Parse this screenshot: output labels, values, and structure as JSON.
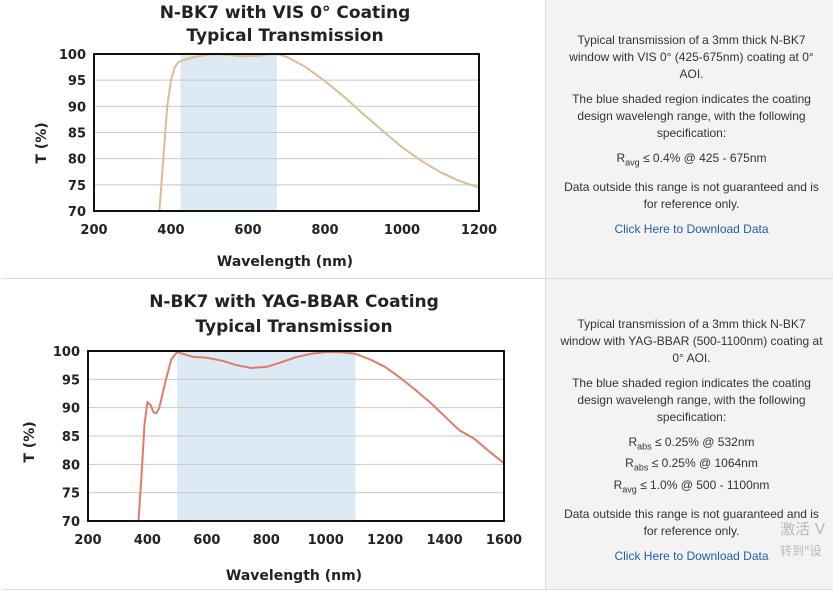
{
  "charts": [
    {
      "title_line1": "N-BK7 with VIS 0° Coating",
      "title_line2": "Typical Transmission",
      "xlabel": "Wavelength (nm)",
      "ylabel": "T (%)",
      "x_ticks": [
        "200",
        "400",
        "600",
        "800",
        "1000",
        "1200"
      ],
      "y_ticks": [
        "70",
        "75",
        "80",
        "85",
        "90",
        "95",
        "100"
      ],
      "description": "Typical transmission of a 3mm thick N-BK7 window with VIS 0° (425-675nm) coating at 0° AOI.",
      "shaded_note": "The blue shaded region indicates the coating design wavelengh range, with the following specification:",
      "specs": [
        {
          "symbol": "R",
          "sub": "avg",
          "text": "≤ 0.4% @ 425 - 675nm"
        }
      ],
      "disclaimer": "Data outside this range is not guaranteed and is for reference only.",
      "download_label": "Click Here to Download Data"
    },
    {
      "title_line1": "N-BK7 with YAG-BBAR Coating",
      "title_line2": "Typical Transmission",
      "xlabel": "Wavelength (nm)",
      "ylabel": "T (%)",
      "x_ticks": [
        "200",
        "400",
        "600",
        "800",
        "1000",
        "1200",
        "1400",
        "1600"
      ],
      "y_ticks": [
        "70",
        "75",
        "80",
        "85",
        "90",
        "95",
        "100"
      ],
      "description": "Typical transmission of a 3mm thick N-BK7 window with YAG-BBAR (500-1100nm) coating at 0° AOI.",
      "shaded_note": "The blue shaded region indicates the coating design wavelengh range, with the following specification:",
      "specs": [
        {
          "symbol": "R",
          "sub": "abs",
          "text": "≤ 0.25% @ 532nm"
        },
        {
          "symbol": "R",
          "sub": "abs",
          "text": "≤ 0.25% @ 1064nm"
        },
        {
          "symbol": "R",
          "sub": "avg",
          "text": "≤ 1.0% @ 500 - 1100nm"
        }
      ],
      "disclaimer": "Data outside this range is not guaranteed and is for reference only.",
      "download_label": "Click Here to Download Data"
    }
  ],
  "watermark": {
    "line1": "激活 V",
    "line2": "转到\"设"
  },
  "chart_data": [
    {
      "type": "line",
      "title": "N-BK7 with VIS 0° Coating Typical Transmission",
      "xlabel": "Wavelength (nm)",
      "ylabel": "T (%)",
      "xlim": [
        200,
        1200
      ],
      "ylim": [
        70,
        100
      ],
      "shaded_range": [
        425,
        675
      ],
      "shade_color": "#dde9f5",
      "grid": true,
      "series": [
        {
          "color": "#d9be93",
          "x": [
            370,
            380,
            390,
            400,
            410,
            420,
            440,
            460,
            480,
            500,
            520,
            550,
            580,
            600,
            630,
            650,
            675,
            700,
            750,
            800,
            850,
            900,
            950,
            1000,
            1050,
            1100,
            1150,
            1200
          ],
          "y": [
            70.0,
            80.0,
            90.0,
            95.0,
            97.5,
            98.5,
            99.0,
            99.4,
            99.7,
            99.9,
            100.0,
            99.8,
            99.6,
            99.6,
            99.7,
            99.9,
            100.0,
            99.5,
            97.5,
            94.8,
            91.8,
            88.5,
            85.3,
            82.2,
            79.6,
            77.4,
            75.7,
            74.5
          ]
        }
      ]
    },
    {
      "type": "line",
      "title": "N-BK7 with YAG-BBAR Coating Typical Transmission",
      "xlabel": "Wavelength (nm)",
      "ylabel": "T (%)",
      "xlim": [
        200,
        1600
      ],
      "ylim": [
        70,
        100
      ],
      "shaded_range": [
        500,
        1100
      ],
      "shade_color": "#dde9f5",
      "grid": true,
      "series": [
        {
          "color": "#e07b6a",
          "x": [
            370,
            380,
            390,
            400,
            410,
            420,
            430,
            440,
            460,
            480,
            500,
            520,
            550,
            600,
            650,
            700,
            750,
            800,
            850,
            900,
            950,
            1000,
            1050,
            1100,
            1150,
            1200,
            1250,
            1300,
            1350,
            1400,
            1450,
            1500,
            1550,
            1600
          ],
          "y": [
            70.0,
            78.0,
            87.0,
            91.0,
            90.5,
            89.2,
            89.0,
            90.0,
            94.5,
            98.5,
            99.8,
            99.5,
            99.0,
            98.8,
            98.3,
            97.5,
            97.0,
            97.2,
            98.0,
            98.9,
            99.5,
            99.8,
            99.8,
            99.5,
            98.5,
            97.2,
            95.3,
            93.2,
            91.0,
            88.5,
            86.0,
            84.5,
            82.3,
            80.2
          ]
        }
      ]
    }
  ]
}
